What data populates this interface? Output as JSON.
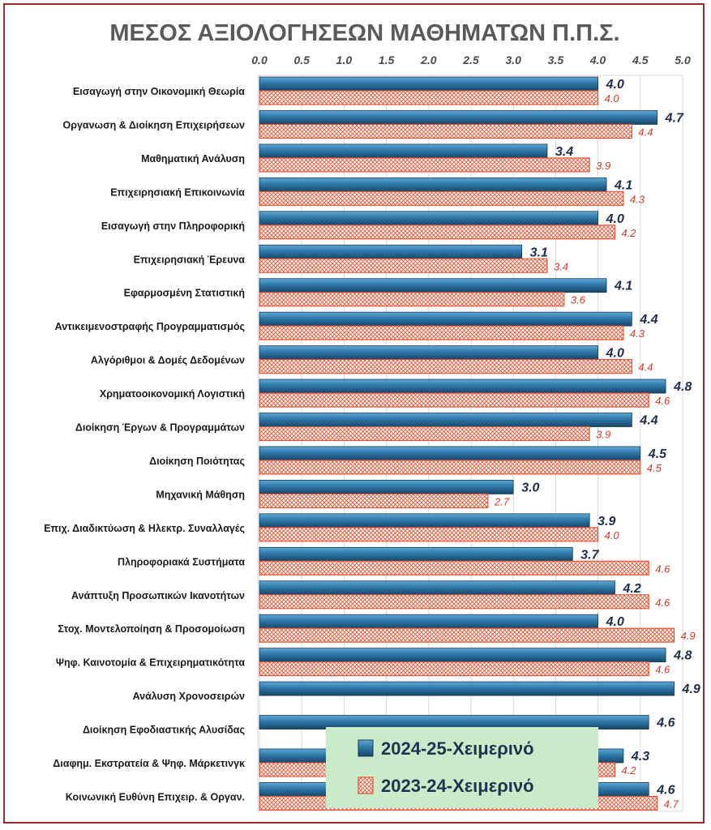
{
  "chart_data": {
    "type": "bar",
    "orientation": "horizontal",
    "title": "ΜΕΣΟΣ ΑΞΙΟΛΟΓΗΣΕΩΝ ΜΑΘΗΜΑΤΩΝ Π.Π.Σ.",
    "xlim": [
      0,
      5
    ],
    "ticks": [
      "0.0",
      "0.5",
      "1.0",
      "1.5",
      "2.0",
      "2.5",
      "3.0",
      "3.5",
      "4.0",
      "4.5",
      "5.0"
    ],
    "categories": [
      "Εισαγωγή στην Οικονομική Θεωρία",
      "Οργανωση & Διοίκηση Επιχειρήσεων",
      "Μαθηματική Ανάλυση",
      "Επιχειρησιακή Επικοινωνία",
      "Εισαγωγή  στην Πληροφορική",
      "Επιχειρησιακή Έρευνα",
      "Εφαρμοσμένη Στατιστική",
      "Αντικειμενοστραφής Προγραμματισμός",
      "Αλγόριθμοι & Δομές Δεδομένων",
      "Χρηματοοικονομική Λογιστική",
      "Διοίκηση Έργων & Προγραμμάτων",
      "Διοίκηση Ποιότητας",
      "Μηχανική Μάθηση",
      "Επιχ. Διαδικτύωση & Ηλεκτρ. Συναλλαγές",
      "Πληροφοριακά Συστήματα",
      "Ανάπτυξη Προσωπικών Ικανοτήτων",
      "Στοχ. Μοντελοποίηση & Προσομοίωση",
      "Ψηφ. Καινοτομία & Επιχειρηματικότητα",
      "Ανάλυση Χρονοσειρών",
      "Διοίκηση Εφοδιαστικής Αλυσίδας",
      "Διαφημ. Εκστρατεία & Ψηφ. Μάρκετινγκ",
      "Κοινωνική Ευθύνη Επιχειρ. & Οργαν."
    ],
    "series": [
      {
        "name": "2024-25-Χειμερινό",
        "color": "#2e78a8",
        "values": [
          4.0,
          4.7,
          3.4,
          4.1,
          4.0,
          3.1,
          4.1,
          4.4,
          4.0,
          4.8,
          4.4,
          4.5,
          3.0,
          3.9,
          3.7,
          4.2,
          4.0,
          4.8,
          4.9,
          4.6,
          4.3,
          4.6
        ],
        "labels": [
          "4.0",
          "4.7",
          "3.4",
          "4.1",
          "4.0",
          "3.1",
          "4.1",
          "4.4",
          "4.0",
          "4.8",
          "4.4",
          "4.5",
          "3.0",
          "3.9",
          "3.7",
          "4.2",
          "4.0",
          "4.8",
          "4.9",
          "4.6",
          "4.3",
          "4.6"
        ]
      },
      {
        "name": "2023-24-Χειμερινό",
        "color": "#e8502f",
        "values": [
          4.0,
          4.4,
          3.9,
          4.3,
          4.2,
          3.4,
          3.6,
          4.3,
          4.4,
          4.6,
          3.9,
          4.5,
          2.7,
          4.0,
          4.6,
          4.6,
          4.9,
          4.6,
          null,
          null,
          4.2,
          4.7
        ],
        "labels": [
          "4.0",
          "4.4",
          "3.9",
          "4.3",
          "4.2",
          "3.4",
          "3.6",
          "4.3",
          "4.4",
          "4.6",
          "3.9",
          "4.5",
          "2.7",
          "4.0",
          "4.6",
          "4.6",
          "4.9",
          "4.6",
          null,
          null,
          "4.2",
          "4.7"
        ]
      }
    ],
    "legend": {
      "position": "bottom-center",
      "background": "#c9ebc9"
    }
  }
}
